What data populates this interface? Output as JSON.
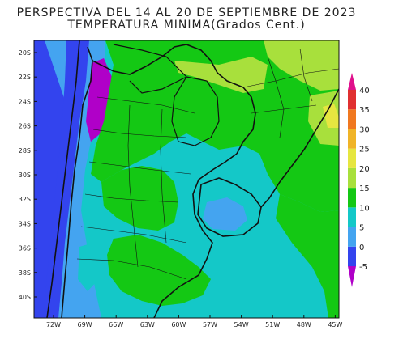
{
  "title_line1": "PERSPECTIVA DEL 14 AL 20 DE SEPTIEMBRE DE 2023",
  "title_line2": "TEMPERATURA MINIMA(Grados Cent.)",
  "lon_labels": [
    "72W",
    "69W",
    "66W",
    "63W",
    "60W",
    "57W",
    "54W",
    "51W",
    "48W",
    "45W"
  ],
  "lat_labels": [
    "20S",
    "22S",
    "24S",
    "26S",
    "28S",
    "30S",
    "32S",
    "34S",
    "36S",
    "38S",
    "40S"
  ],
  "colorbar": {
    "ticks": [
      "-5",
      "0",
      "5",
      "10",
      "15",
      "20",
      "25",
      "30",
      "35",
      "40"
    ],
    "colors": [
      "#b000c8",
      "#3344ee",
      "#44a4f0",
      "#14c8c8",
      "#14c814",
      "#a8e03c",
      "#e6e640",
      "#f0b428",
      "#f07820",
      "#e03030",
      "#e0108c"
    ]
  },
  "colors": {
    "ocean": "#14c8c8",
    "land_15_20": "#14c814",
    "land_20_25": "#a8e03c",
    "cold_5_10": "#44a4f0",
    "cold_0_5": "#3344ee",
    "cold_neg": "#b000c8",
    "warm_spot": "#e6e640"
  }
}
